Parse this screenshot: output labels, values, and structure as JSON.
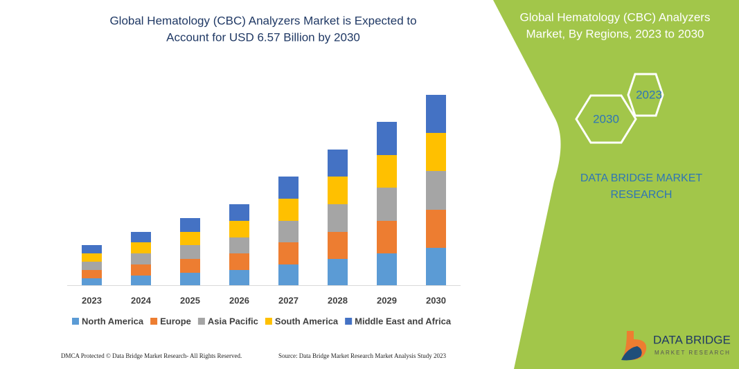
{
  "chart_data": {
    "type": "stacked_bar",
    "title": [
      "Global Hematology (CBC) Analyzers Market is Expected to",
      "Account for USD 6.57 Billion by 2030"
    ],
    "categories": [
      "2023",
      "2024",
      "2025",
      "2026",
      "2027",
      "2028",
      "2029",
      "2030"
    ],
    "series": [
      {
        "name": "North America",
        "color": "#5b9bd5",
        "values": [
          10,
          14,
          18,
          22,
          30,
          38,
          46,
          54
        ]
      },
      {
        "name": "Europe",
        "color": "#ed7d31",
        "values": [
          12,
          16,
          20,
          24,
          32,
          39,
          47,
          55
        ]
      },
      {
        "name": "Asia Pacific",
        "color": "#a5a5a5",
        "values": [
          12,
          16,
          20,
          23,
          31,
          40,
          48,
          56
        ]
      },
      {
        "name": "South America",
        "color": "#ffc000",
        "values": [
          12,
          16,
          19,
          24,
          32,
          40,
          47,
          55
        ]
      },
      {
        "name": "Middle East and Africa",
        "color": "#4472c4",
        "values": [
          12,
          15,
          20,
          24,
          32,
          39,
          48,
          55
        ]
      }
    ],
    "ylim": [
      0,
      300
    ]
  },
  "side_panel": {
    "title": [
      "Global Hematology (CBC) Analyzers",
      "Market, By Regions, 2023 to 2030"
    ],
    "hex_labels": [
      "2023",
      "2030"
    ],
    "brand": [
      "DATA BRIDGE MARKET",
      "RESEARCH"
    ]
  },
  "footer": {
    "dmca": "DMCA Protected © Data Bridge Market Research- All Rights Reserved.",
    "source": "Source: Data Bridge Market Research Market Analysis Study 2023"
  },
  "logo": {
    "name": "DATA BRIDGE",
    "tagline": "MARKET RESEARCH"
  }
}
